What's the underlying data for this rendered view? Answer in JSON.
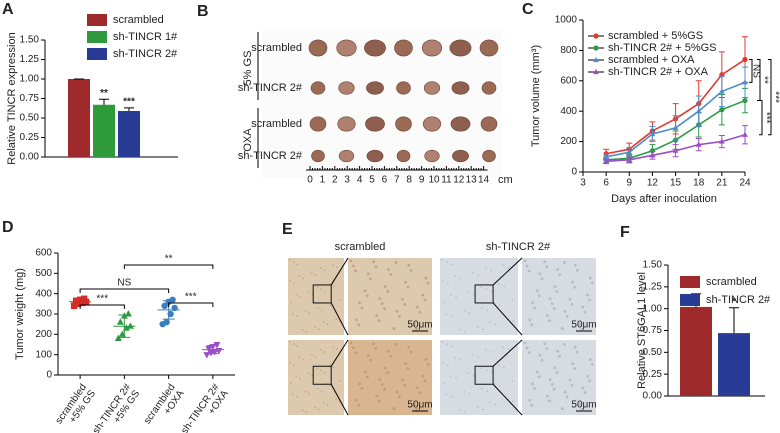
{
  "chart_data": [
    {
      "type": "bar",
      "panel": "A",
      "ylabel": "Relative TINCR expression",
      "ylim": [
        0,
        1.5
      ],
      "yticks": [
        {
          "value": 0,
          "label": "0.00"
        },
        {
          "value": 0.25,
          "label": "0.25"
        },
        {
          "value": 0.5,
          "label": "0.50"
        },
        {
          "value": 0.75,
          "label": "0.75"
        },
        {
          "value": 1,
          "label": "1.00"
        },
        {
          "value": 1.25,
          "label": "1.25"
        },
        {
          "value": 1.5,
          "label": "1.50"
        }
      ],
      "series": [
        {
          "name": "scrambled",
          "color": "#9e2a2b",
          "values": [
            1.0
          ],
          "errors": [
            0
          ]
        },
        {
          "name": "sh-TINCR 1#",
          "color": "#2f9a3c",
          "values": [
            0.67
          ],
          "errors": [
            0.07
          ],
          "annotation": "**"
        },
        {
          "name": "sh-TINCR 2#",
          "color": "#283c96",
          "values": [
            0.59
          ],
          "errors": [
            0.04
          ],
          "annotation": "***"
        }
      ]
    },
    {
      "type": "line",
      "panel": "C",
      "xlabel": "Days after inoculation",
      "ylabel": "Tumor volume (mm³)",
      "x": [
        6,
        9,
        12,
        15,
        18,
        21,
        24
      ],
      "xlim": [
        3,
        24
      ],
      "xticks": [
        3,
        6,
        9,
        12,
        15,
        18,
        21,
        24
      ],
      "ylim": [
        0,
        1000
      ],
      "yticks": [
        0,
        200,
        400,
        600,
        800,
        1000
      ],
      "series": [
        {
          "name": "scrambled + 5%GS",
          "color": "#e03a30",
          "marker": "circle",
          "values": [
            120,
            150,
            270,
            350,
            450,
            640,
            740
          ],
          "errors": [
            30,
            40,
            60,
            100,
            150,
            150,
            150
          ]
        },
        {
          "name": "sh-TINCR 2# + 5%GS",
          "color": "#2e9a44",
          "marker": "circle",
          "values": [
            80,
            90,
            140,
            210,
            310,
            410,
            470
          ],
          "errors": [
            20,
            25,
            40,
            60,
            80,
            100,
            80
          ]
        },
        {
          "name": "scrambled + OXA",
          "color": "#4a8ed0",
          "marker": "triangle",
          "values": [
            100,
            130,
            250,
            290,
            400,
            530,
            590
          ],
          "errors": [
            20,
            30,
            50,
            80,
            100,
            100,
            100
          ]
        },
        {
          "name": "sh-TINCR 2# + OXA",
          "color": "#9a4ec8",
          "marker": "triangle",
          "values": [
            70,
            80,
            110,
            140,
            180,
            200,
            245
          ],
          "errors": [
            15,
            20,
            25,
            40,
            40,
            40,
            60
          ]
        }
      ],
      "annotations": [
        "NS",
        "**",
        "***",
        "***"
      ]
    },
    {
      "type": "dot",
      "panel": "D",
      "ylabel": "Tumor weight (mg)",
      "ylim": [
        0,
        600
      ],
      "yticks": [
        0,
        100,
        200,
        300,
        400,
        500,
        600
      ],
      "groups": [
        {
          "label": [
            "scrambled",
            "+5% GS"
          ],
          "color": "#d42a2a",
          "marker": "square",
          "values": [
            340,
            350,
            355,
            360,
            365,
            370,
            375
          ],
          "mean": 360,
          "sd": 15
        },
        {
          "label": [
            "sh-TINCR 2#",
            "+5% GS"
          ],
          "color": "#2e9a44",
          "marker": "triangle",
          "values": [
            180,
            200,
            230,
            240,
            260,
            290,
            300
          ],
          "mean": 240,
          "sd": 55
        },
        {
          "label": [
            "scrambled",
            "+OXA"
          ],
          "color": "#3a7ec0",
          "marker": "circle",
          "values": [
            250,
            260,
            300,
            330,
            340,
            360,
            370
          ],
          "mean": 320,
          "sd": 45
        },
        {
          "label": [
            "sh-TINCR 2#",
            "+OXA"
          ],
          "color": "#9a4ec8",
          "marker": "triangle-down",
          "values": [
            100,
            110,
            115,
            120,
            130,
            140,
            150
          ],
          "mean": 125,
          "sd": 20
        }
      ],
      "annotations": [
        "***",
        "NS",
        "**",
        "***"
      ]
    },
    {
      "type": "bar",
      "panel": "F",
      "ylabel": "Relative ST6GAL1 level",
      "ylim": [
        0,
        1.5
      ],
      "yticks": [
        {
          "value": 0,
          "label": "0.00"
        },
        {
          "value": 0.25,
          "label": "0.25"
        },
        {
          "value": 0.5,
          "label": "0.50"
        },
        {
          "value": 0.75,
          "label": "0.75"
        },
        {
          "value": 1,
          "label": "1.00"
        },
        {
          "value": 1.25,
          "label": "1.25"
        },
        {
          "value": 1.5,
          "label": "1.50"
        }
      ],
      "series": [
        {
          "name": "scrambled",
          "color": "#9e2a2b",
          "values": [
            1.02
          ],
          "errors": [
            0.15
          ]
        },
        {
          "name": "sh-TINCR 2#",
          "color": "#283c96",
          "values": [
            0.72
          ],
          "errors": [
            0.29
          ],
          "annotation": "*"
        }
      ]
    }
  ],
  "images": {
    "B": {
      "panel": "B",
      "groups": [
        {
          "label": "5% GS",
          "rows": [
            {
              "label": "scrambled",
              "color": "#d42a2a"
            },
            {
              "label": "sh-TINCR 2#",
              "color": "#2e9a44"
            }
          ]
        },
        {
          "label": "OXA",
          "rows": [
            {
              "label": "scrambled",
              "color": "#3a7ec0"
            },
            {
              "label": "sh-TINCR 2#",
              "color": "#9a4ec8"
            }
          ]
        }
      ],
      "ruler": [
        0,
        1,
        2,
        3,
        4,
        5,
        6,
        7,
        8,
        9,
        10,
        11,
        12,
        13,
        14
      ],
      "unit": "cm"
    },
    "E": {
      "panel": "E",
      "columns": [
        {
          "label": "scrambled",
          "scale_bars": [
            "50μm",
            "50μm"
          ]
        },
        {
          "label": "sh-TINCR 2#",
          "scale_bars": [
            "50μm",
            "50μm"
          ]
        }
      ]
    }
  }
}
